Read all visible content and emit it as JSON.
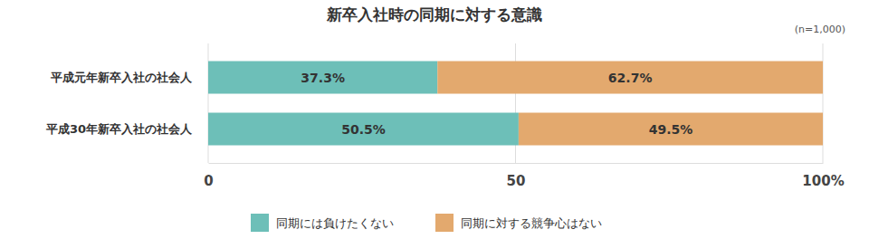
{
  "chart_data": {
    "type": "bar",
    "title": "新卒入社時の同期に対する意識",
    "annotation": "(n=1,000)",
    "orientation": "horizontal",
    "stacked": true,
    "data_labels": true,
    "grid": true,
    "categories": [
      "平成元年新卒入社の社会人",
      "平成30年新卒入社の社会人"
    ],
    "series": [
      {
        "name": "同期には負けたくない",
        "color": "#6dbfb8",
        "values": [
          37.3,
          50.5
        ],
        "value_labels": [
          "37.3%",
          "50.5%"
        ]
      },
      {
        "name": "同期に対する競争心はない",
        "color": "#e3a96e",
        "values": [
          62.7,
          49.5
        ],
        "value_labels": [
          "62.7%",
          "49.5%"
        ]
      }
    ],
    "xlim": [
      0,
      100
    ],
    "xticks": [
      0,
      50,
      {
        "value": 100,
        "label": "100%"
      }
    ]
  }
}
